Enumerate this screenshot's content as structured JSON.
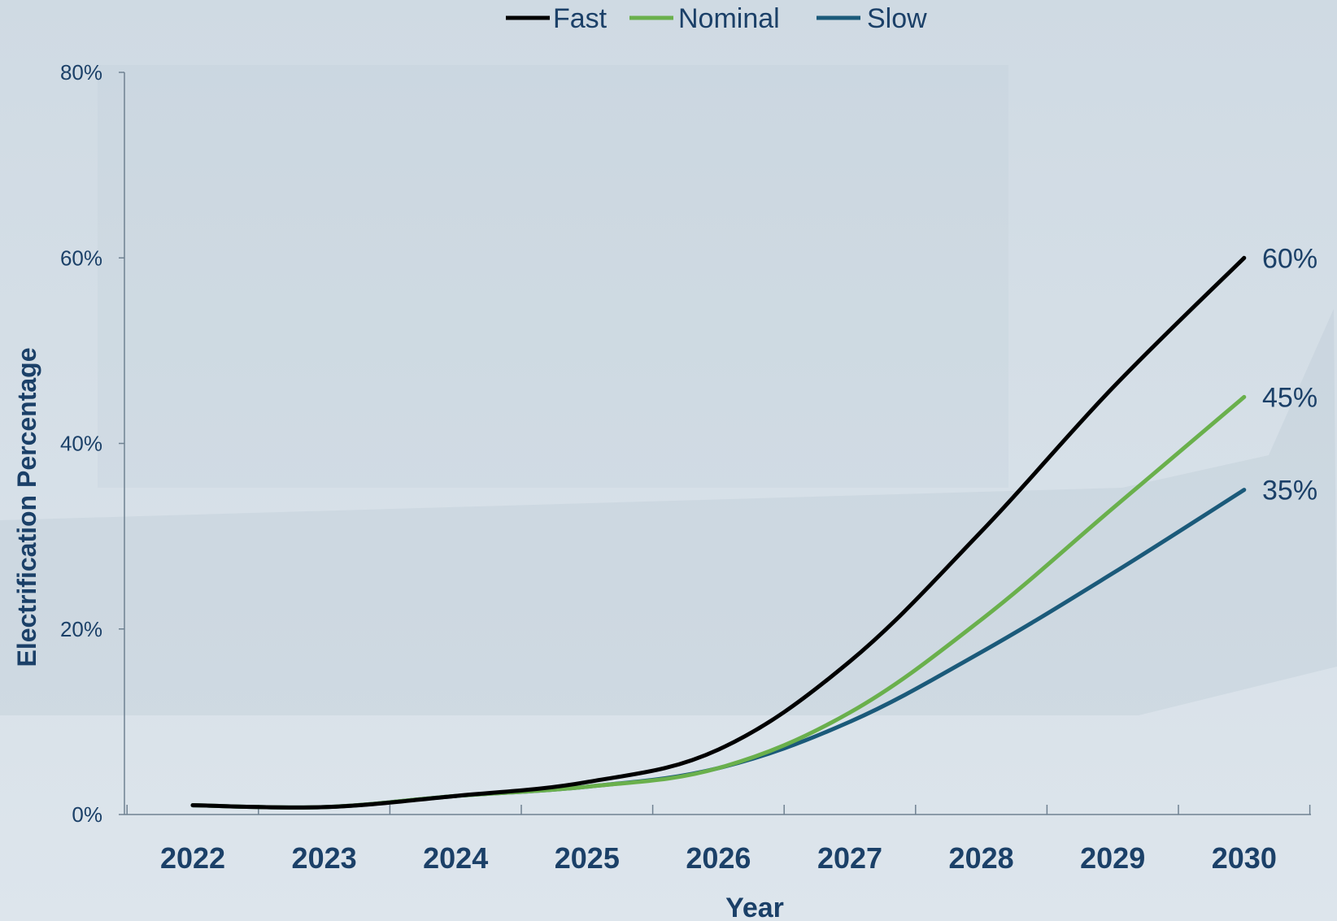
{
  "colors": {
    "background_top": "#cfdae3",
    "background_bottom": "#dde5ec",
    "photo_shade": "#b9c8d4",
    "text": "#1b4068",
    "axis": "#6f8191",
    "fast": "#000000",
    "nominal": "#6ab04c",
    "slow": "#1b5a7a"
  },
  "chart_data": {
    "type": "line",
    "title": "",
    "xlabel": "Year",
    "ylabel": "Electrification Percentage",
    "x": [
      2022,
      2023,
      2024,
      2025,
      2026,
      2027,
      2028,
      2029,
      2030
    ],
    "x_tick_labels": [
      "2022",
      "2023",
      "2024",
      "2025",
      "2026",
      "2027",
      "2028",
      "2029",
      "2030"
    ],
    "ylim": [
      0,
      80
    ],
    "y_ticks": [
      0,
      20,
      40,
      60,
      80
    ],
    "y_tick_labels": [
      "0%",
      "20%",
      "40%",
      "60%",
      "80%"
    ],
    "grid": false,
    "legend_position": "top-center",
    "series": [
      {
        "name": "Fast",
        "color_key": "fast",
        "values": [
          1,
          0.8,
          2,
          3.5,
          7,
          16.5,
          30.5,
          46,
          60
        ],
        "end_label": "60%"
      },
      {
        "name": "Nominal",
        "color_key": "nominal",
        "values": [
          1,
          0.8,
          2,
          3,
          5,
          11,
          21,
          33,
          45
        ],
        "end_label": "45%"
      },
      {
        "name": "Slow",
        "color_key": "slow",
        "values": [
          1,
          0.8,
          2,
          3,
          5,
          10,
          17.5,
          26,
          35
        ],
        "end_label": "35%"
      }
    ]
  }
}
